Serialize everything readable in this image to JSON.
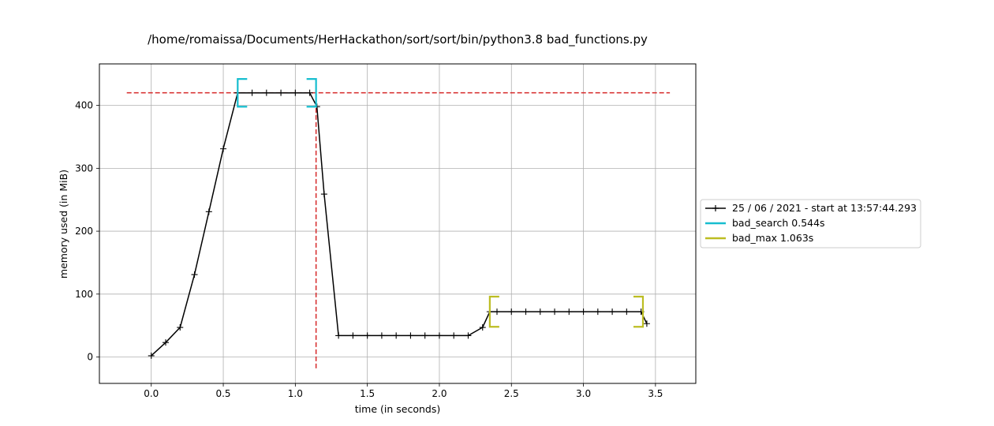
{
  "chart_data": {
    "type": "line",
    "title": "/home/romaissa/Documents/HerHackathon/sort/sort/bin/python3.8 bad_functions.py",
    "xlabel": "time (in seconds)",
    "ylabel": "memory used (in MiB)",
    "xlim": [
      -0.36,
      3.78
    ],
    "ylim": [
      -42,
      466
    ],
    "xticks": [
      0.0,
      0.5,
      1.0,
      1.5,
      2.0,
      2.5,
      3.0,
      3.5
    ],
    "xtick_labels": [
      "0.0",
      "0.5",
      "1.0",
      "1.5",
      "2.0",
      "2.5",
      "3.0",
      "3.5"
    ],
    "yticks": [
      0,
      100,
      200,
      300,
      400
    ],
    "ytick_labels": [
      "0",
      "100",
      "200",
      "300",
      "400"
    ],
    "grid": true,
    "legend_position": "outside-right",
    "series": [
      {
        "name": "25 / 06 / 2021 - start at 13:57:44.293",
        "color": "#000000",
        "marker": "plus",
        "x": [
          0.0,
          0.1,
          0.2,
          0.3,
          0.4,
          0.5,
          0.6,
          0.7,
          0.8,
          0.9,
          1.0,
          1.1,
          1.15,
          1.2,
          1.3,
          1.4,
          1.5,
          1.6,
          1.7,
          1.8,
          1.9,
          2.0,
          2.1,
          2.2,
          2.3,
          2.35,
          2.4,
          2.5,
          2.6,
          2.7,
          2.8,
          2.9,
          3.0,
          3.1,
          3.2,
          3.3,
          3.4,
          3.44
        ],
        "y": [
          2,
          23,
          47,
          131,
          231,
          331,
          420,
          420,
          420,
          420,
          420,
          420,
          398,
          259,
          34,
          34,
          34,
          34,
          34,
          34,
          34,
          34,
          34,
          34,
          47,
          72,
          72,
          72,
          72,
          72,
          72,
          72,
          72,
          72,
          72,
          72,
          72,
          53
        ]
      }
    ],
    "reference_lines": [
      {
        "orientation": "horizontal",
        "y": 420,
        "x_from": -0.17,
        "x_to": 3.6,
        "color": "#d62728",
        "style": "dashed"
      },
      {
        "orientation": "vertical",
        "x": 1.144,
        "y_from": -18,
        "y_to": 420,
        "color": "#d62728",
        "style": "dashed"
      }
    ],
    "function_brackets": [
      {
        "name": "bad_search 0.544s",
        "color": "#17becf",
        "x_start": 0.6,
        "x_end": 1.144,
        "y_low": 398,
        "y_high": 442
      },
      {
        "name": "bad_max 1.063s",
        "color": "#bcbd22",
        "x_start": 2.35,
        "x_end": 3.413,
        "y_low": 48,
        "y_high": 96
      }
    ]
  }
}
